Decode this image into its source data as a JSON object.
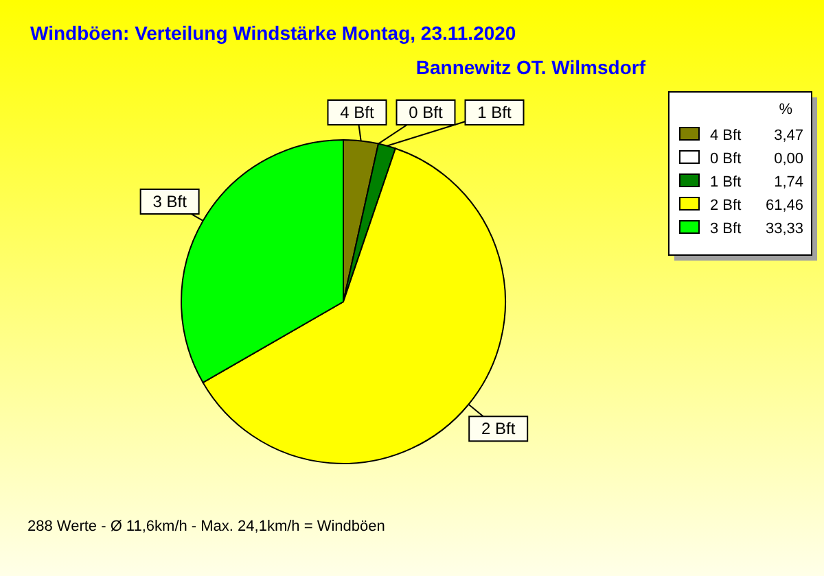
{
  "chart_data": {
    "type": "pie",
    "title": "Windböen: Verteilung Windstärke  Montag, 23.11.2020",
    "subtitle": "Bannewitz OT. Wilmsdorf",
    "categories": [
      "4 Bft",
      "0 Bft",
      "1 Bft",
      "2 Bft",
      "3 Bft"
    ],
    "values": [
      3.47,
      0.0,
      1.74,
      61.46,
      33.33
    ],
    "value_labels": [
      "3,47",
      "0,00",
      "1,74",
      "61,46",
      "33,33"
    ],
    "colors": [
      "#808000",
      "#ffffff",
      "#008000",
      "#ffff00",
      "#00ff00"
    ],
    "legend": "top right",
    "legend_title": "%",
    "annotations": [
      "288 Werte   -   Ø 11,6km/h  -  Max. 24,1km/h = Windböen"
    ]
  }
}
